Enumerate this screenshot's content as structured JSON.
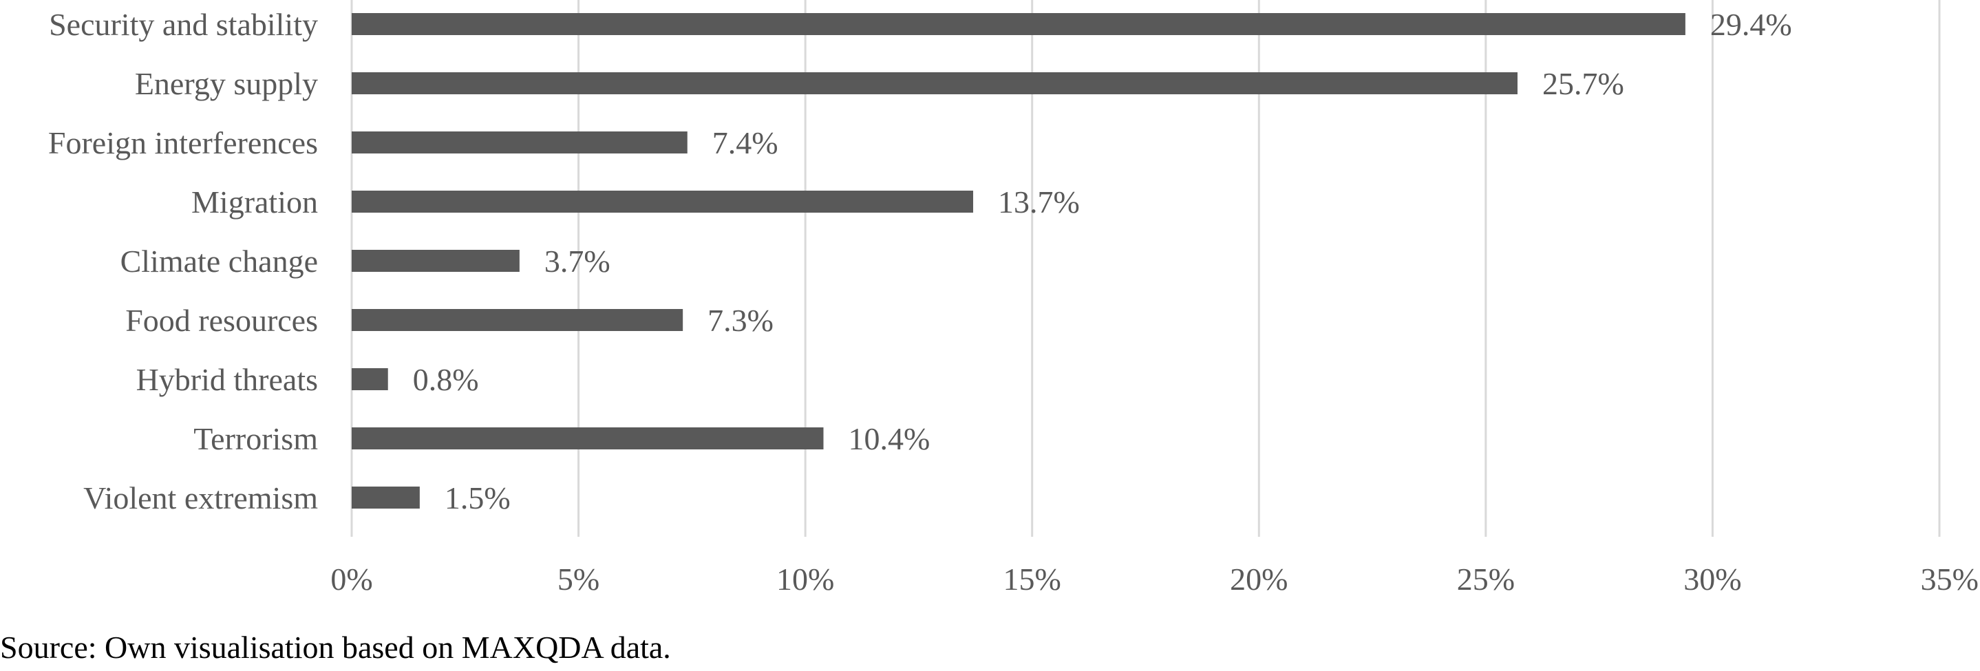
{
  "chart_data": {
    "type": "bar",
    "orientation": "horizontal",
    "categories": [
      "Security and stability",
      "Energy supply",
      "Foreign interferences",
      "Migration",
      "Climate change",
      "Food resources",
      "Hybrid threats",
      "Terrorism",
      "Violent extremism"
    ],
    "values": [
      29.4,
      25.7,
      7.4,
      13.7,
      3.7,
      7.3,
      0.8,
      10.4,
      1.5
    ],
    "data_labels": [
      "29.4%",
      "25.7%",
      "7.4%",
      "13.7%",
      "3.7%",
      "7.3%",
      "0.8%",
      "10.4%",
      "1.5%"
    ],
    "xlim": [
      0,
      35
    ],
    "xticks": [
      0,
      5,
      10,
      15,
      20,
      25,
      30,
      35
    ],
    "xtick_labels": [
      "0%",
      "5%",
      "10%",
      "15%",
      "20%",
      "25%",
      "30%",
      "35%"
    ],
    "title": "",
    "xlabel": "",
    "ylabel": "",
    "grid": "vertical",
    "legend": "none",
    "colors": {
      "bar": "#595959",
      "gridline": "#d9d9d9",
      "text": "#595959"
    }
  },
  "source_note": "Source: Own visualisation based on MAXQDA data."
}
